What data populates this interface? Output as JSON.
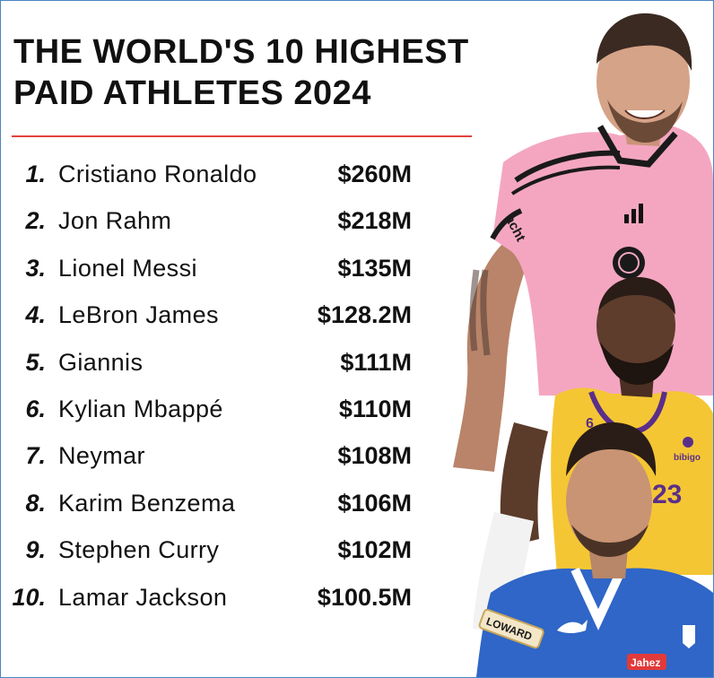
{
  "title": {
    "line1": "THE WORLD'S 10 HIGHEST",
    "line2": "PAID ATHLETES 2024"
  },
  "accent_color": "#e0433d",
  "athletes": [
    {
      "rank": "1.",
      "name": "Cristiano Ronaldo",
      "earnings": "$260M"
    },
    {
      "rank": "2.",
      "name": "Jon Rahm",
      "earnings": "$218M"
    },
    {
      "rank": "3.",
      "name": "Lionel Messi",
      "earnings": "$135M"
    },
    {
      "rank": "4.",
      "name": "LeBron James",
      "earnings": "$128.2M"
    },
    {
      "rank": "5.",
      "name": "Giannis",
      "earnings": "$111M"
    },
    {
      "rank": "6.",
      "name": "Kylian Mbappé",
      "earnings": "$110M"
    },
    {
      "rank": "7.",
      "name": "Neymar",
      "earnings": "$108M"
    },
    {
      "rank": "8.",
      "name": "Karim Benzema",
      "earnings": "$106M"
    },
    {
      "rank": "9.",
      "name": "Stephen Curry",
      "earnings": "$102M"
    },
    {
      "rank": "10.",
      "name": "Lamar Jackson",
      "earnings": "$100.5M"
    }
  ],
  "photo": {
    "jersey_text_1": "acht",
    "jersey_number": "6",
    "jersey_sponsor": "bibigo",
    "jersey_number_2": "23",
    "sleeve_badge": "LOWARD",
    "shirt_sponsor": "Jahez"
  }
}
